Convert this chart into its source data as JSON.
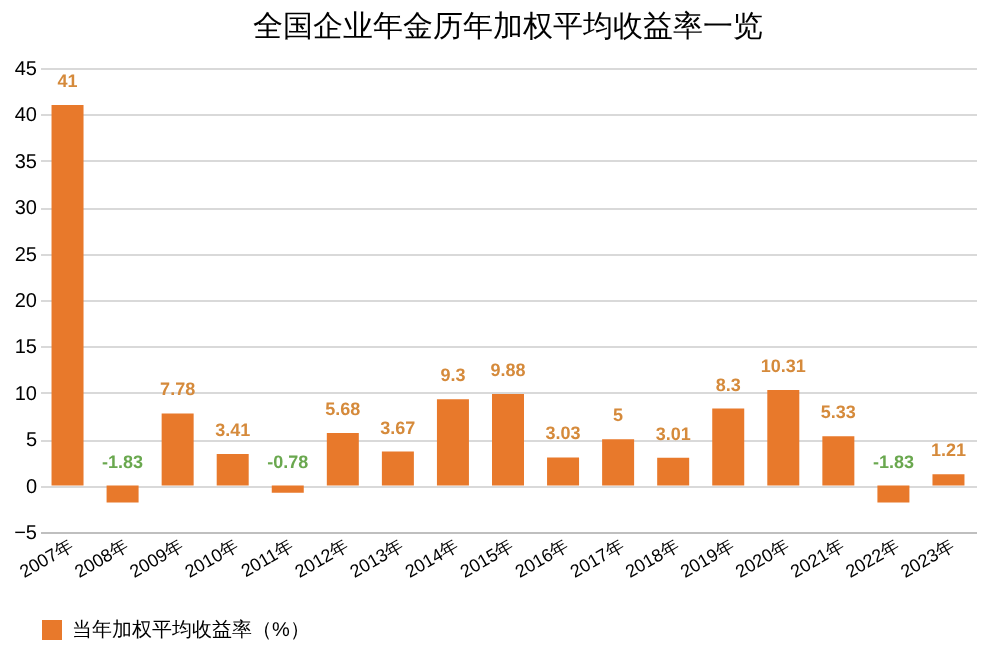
{
  "chart_data": {
    "type": "bar",
    "title": "全国企业年金历年加权平均收益率一览",
    "categories": [
      "2007年",
      "2008年",
      "2009年",
      "2010年",
      "2011年",
      "2012年",
      "2013年",
      "2014年",
      "2015年",
      "2016年",
      "2017年",
      "2018年",
      "2019年",
      "2020年",
      "2021年",
      "2022年",
      "2023年"
    ],
    "series": [
      {
        "name": "当年加权平均收益率（%）",
        "color": "#e8792b",
        "values": [
          41,
          -1.83,
          7.78,
          3.41,
          -0.78,
          5.68,
          3.67,
          9.3,
          9.88,
          3.03,
          5,
          3.01,
          8.3,
          10.31,
          5.33,
          -1.83,
          1.21
        ]
      }
    ],
    "ylim": [
      -5,
      45
    ],
    "yticks": [
      -5,
      0,
      5,
      10,
      15,
      20,
      25,
      30,
      35,
      40,
      45
    ],
    "grid": "y",
    "legend": "bottom",
    "data_labels": true
  }
}
